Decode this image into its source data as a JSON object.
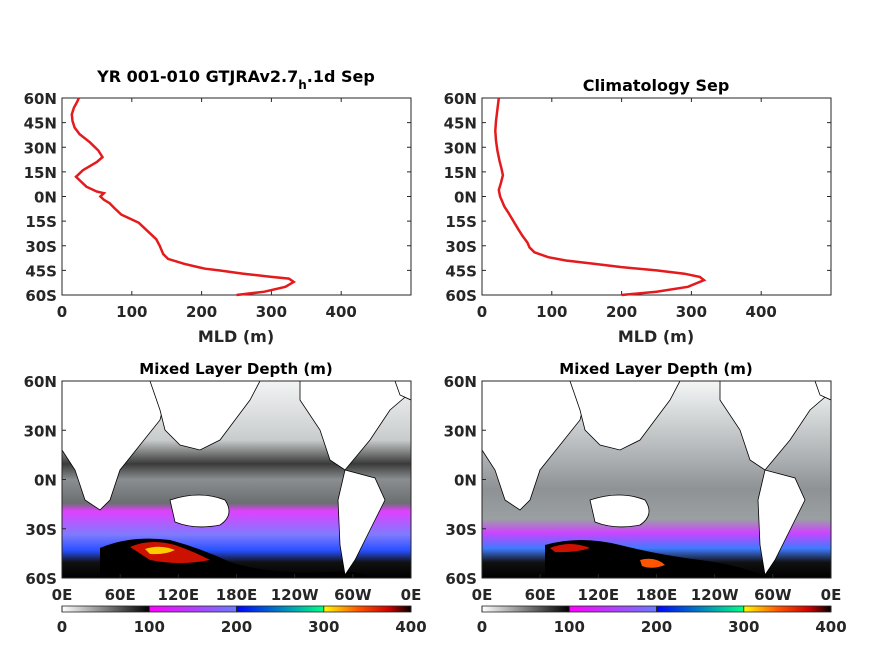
{
  "figure": {
    "background": "#ffffff"
  },
  "chart_data": [
    {
      "type": "line",
      "title_main": "YR 001-010 GTJRAv2.7",
      "title_sub": "h",
      "title_rest": ".1d Sep",
      "xlabel": "MLD (m)",
      "ylabel": "",
      "xlim": [
        0,
        500
      ],
      "ylim": [
        -60,
        60
      ],
      "xticks": [
        0,
        100,
        200,
        300,
        400
      ],
      "xtick_labels": [
        "0",
        "100",
        "200",
        "300",
        "400"
      ],
      "yticks": [
        60,
        45,
        30,
        15,
        0,
        -15,
        -30,
        -45,
        -60
      ],
      "ytick_labels": [
        "60N",
        "45N",
        "30N",
        "15N",
        "0N",
        "15S",
        "30S",
        "45S",
        "60S"
      ],
      "grid": false,
      "line_color": "#e41a1c",
      "series": [
        {
          "x": [
            250,
            290,
            320,
            332,
            325,
            300,
            260,
            225,
            205,
            195,
            175,
            152,
            145,
            140,
            135,
            110,
            85,
            75,
            68,
            60,
            55,
            60,
            50,
            35,
            25,
            20,
            30,
            50,
            58,
            52,
            40,
            25,
            18,
            15,
            14,
            17,
            22,
            24
          ],
          "y": [
            -60,
            -58,
            -55,
            -52,
            -50,
            -49,
            -47,
            -45,
            -44,
            -43,
            -41,
            -38,
            -35,
            -30,
            -26,
            -16,
            -11,
            -7,
            -4,
            -2,
            0,
            2,
            3,
            6,
            10,
            12,
            16,
            21,
            24,
            28,
            33,
            38,
            42,
            46,
            50,
            54,
            58,
            60
          ]
        }
      ]
    },
    {
      "type": "line",
      "title_main": "Climatology Sep",
      "title_sub": "",
      "title_rest": "",
      "xlabel": "MLD (m)",
      "ylabel": "",
      "xlim": [
        0,
        500
      ],
      "ylim": [
        -60,
        60
      ],
      "xticks": [
        0,
        100,
        200,
        300,
        400
      ],
      "xtick_labels": [
        "0",
        "100",
        "200",
        "300",
        "400"
      ],
      "yticks": [
        60,
        45,
        30,
        15,
        0,
        -15,
        -30,
        -45,
        -60
      ],
      "ytick_labels": [
        "60N",
        "45N",
        "30N",
        "15N",
        "0N",
        "15S",
        "30S",
        "45S",
        "60S"
      ],
      "grid": false,
      "line_color": "#e41a1c",
      "series": [
        {
          "x": [
            200,
            250,
            295,
            318,
            312,
            290,
            250,
            200,
            160,
            120,
            95,
            75,
            68,
            65,
            58,
            52,
            45,
            38,
            32,
            28,
            26,
            24,
            27,
            30,
            28,
            25,
            22,
            20,
            19,
            20,
            22,
            24
          ],
          "y": [
            -60,
            -58,
            -55,
            -51,
            -49,
            -47,
            -45,
            -43,
            -41,
            -39,
            -37,
            -34,
            -31,
            -28,
            -24,
            -20,
            -15,
            -10,
            -6,
            -2,
            0,
            4,
            8,
            13,
            17,
            22,
            28,
            34,
            40,
            46,
            53,
            60
          ]
        }
      ]
    },
    {
      "type": "heatmap",
      "title": "Mixed Layer Depth (m)",
      "xtick_labels": [
        "0E",
        "60E",
        "120E",
        "180E",
        "120W",
        "60W",
        "0E"
      ],
      "ytick_labels": [
        "60N",
        "30N",
        "0N",
        "30S",
        "60S"
      ],
      "ylim": [
        -60,
        60
      ],
      "colorbar": {
        "ticks": [
          "0",
          "100",
          "200",
          "300",
          "400"
        ],
        "range": [
          0,
          400
        ]
      }
    },
    {
      "type": "heatmap",
      "title": "Mixed Layer Depth (m)",
      "xtick_labels": [
        "0E",
        "60E",
        "120E",
        "180E",
        "120W",
        "60W",
        "0E"
      ],
      "ytick_labels": [
        "60N",
        "30N",
        "0N",
        "30S",
        "60S"
      ],
      "ylim": [
        -60,
        60
      ],
      "colorbar": {
        "ticks": [
          "0",
          "100",
          "200",
          "300",
          "400"
        ],
        "range": [
          0,
          400
        ]
      }
    }
  ]
}
